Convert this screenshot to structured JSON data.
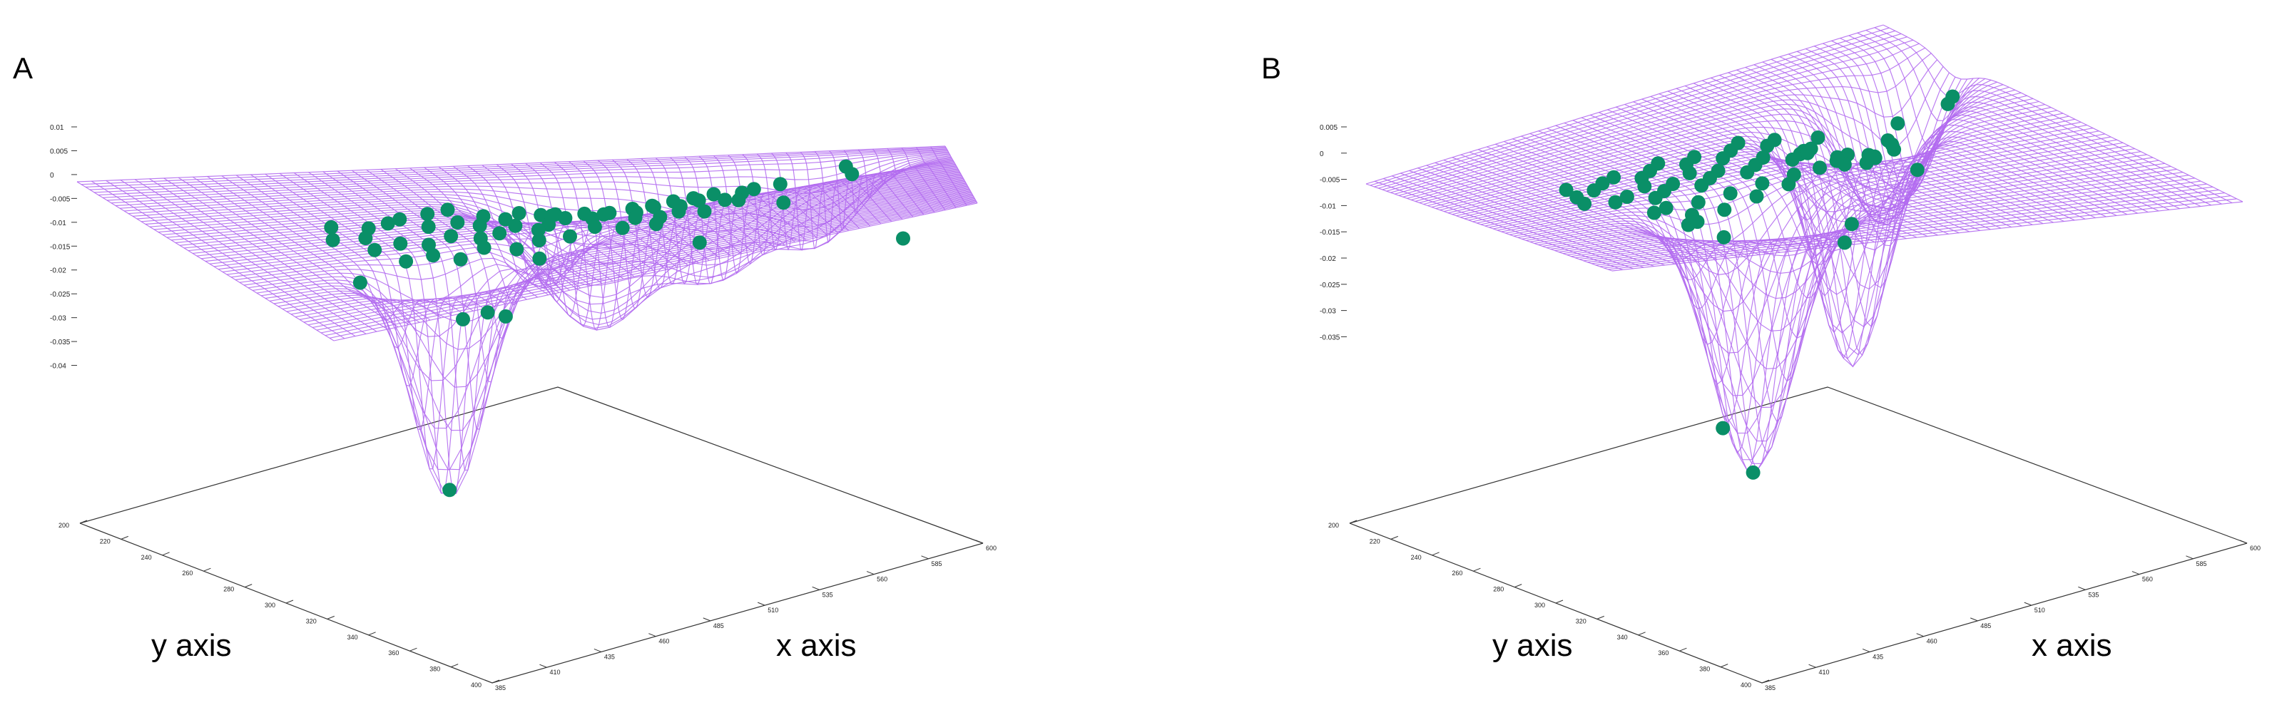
{
  "figure": {
    "colors": {
      "mesh": "#b36bf0",
      "points": "#0a8f67",
      "axes": "#333333",
      "text": "#000000"
    }
  },
  "chart_data": [
    {
      "type": "surface3d",
      "panel_label": "A",
      "xlabel": "x axis",
      "ylabel": "y axis",
      "zlim": [
        -0.045,
        0.01
      ],
      "z_ticks": [
        0.01,
        0.005,
        0,
        -0.005,
        -0.01,
        -0.015,
        -0.02,
        -0.025,
        -0.03,
        -0.035,
        -0.04
      ],
      "z_tick_labels": [
        "0.01",
        "0.005",
        "0",
        "-0.005",
        "-0.01",
        "-0.015",
        "-0.02",
        "-0.025",
        "-0.03",
        "-0.035",
        "-0.04"
      ],
      "x_ticks": [
        385,
        410,
        435,
        460,
        485,
        510,
        535,
        560,
        585,
        600
      ],
      "y_ticks": [
        200,
        220,
        240,
        260,
        280,
        300,
        320,
        340,
        360,
        380,
        400
      ],
      "wells": [
        {
          "x": 0.26,
          "y": 0.74,
          "depth": -0.048,
          "width": 0.07
        },
        {
          "x": 0.42,
          "y": 0.64,
          "depth": -0.01,
          "width": 0.05
        },
        {
          "x": 0.55,
          "y": 0.31,
          "depth": -0.028,
          "width": 0.1
        },
        {
          "x": 0.71,
          "y": 0.25,
          "depth": -0.02,
          "width": 0.09
        },
        {
          "x": 0.84,
          "y": 0.2,
          "depth": -0.015,
          "width": 0.07
        }
      ],
      "points": [
        [
          0.2,
          0.38,
          0
        ],
        [
          0.24,
          0.41,
          0
        ],
        [
          0.27,
          0.39,
          0
        ],
        [
          0.29,
          0.37,
          0
        ],
        [
          0.33,
          0.35,
          0
        ],
        [
          0.36,
          0.33,
          0
        ],
        [
          0.31,
          0.44,
          0
        ],
        [
          0.35,
          0.43,
          0
        ],
        [
          0.39,
          0.4,
          0
        ],
        [
          0.41,
          0.44,
          0
        ],
        [
          0.44,
          0.38,
          0
        ],
        [
          0.46,
          0.42,
          0
        ],
        [
          0.49,
          0.36,
          0
        ],
        [
          0.52,
          0.4,
          0
        ],
        [
          0.55,
          0.37,
          0
        ],
        [
          0.58,
          0.41,
          0
        ],
        [
          0.61,
          0.38,
          0
        ],
        [
          0.64,
          0.36,
          0
        ],
        [
          0.66,
          0.4,
          0
        ],
        [
          0.69,
          0.37,
          0
        ],
        [
          0.72,
          0.42,
          0
        ],
        [
          0.74,
          0.38,
          0
        ],
        [
          0.21,
          0.55,
          0
        ],
        [
          0.25,
          0.53,
          0
        ],
        [
          0.28,
          0.56,
          0
        ],
        [
          0.32,
          0.52,
          0
        ],
        [
          0.35,
          0.56,
          0
        ],
        [
          0.38,
          0.54,
          0
        ],
        [
          0.41,
          0.5,
          0
        ],
        [
          0.45,
          0.52,
          0
        ],
        [
          0.48,
          0.48,
          0
        ],
        [
          0.51,
          0.51,
          0
        ],
        [
          0.54,
          0.47,
          0
        ],
        [
          0.57,
          0.5,
          0
        ],
        [
          0.6,
          0.46,
          0
        ],
        [
          0.63,
          0.49,
          0
        ],
        [
          0.66,
          0.45,
          0
        ],
        [
          0.69,
          0.48,
          0
        ],
        [
          0.23,
          0.63,
          0
        ],
        [
          0.27,
          0.62,
          0
        ],
        [
          0.3,
          0.65,
          0
        ],
        [
          0.34,
          0.62,
          0
        ],
        [
          0.38,
          0.64,
          0
        ],
        [
          0.42,
          0.6,
          0
        ],
        [
          0.46,
          0.61,
          0
        ],
        [
          0.5,
          0.58,
          0
        ],
        [
          0.53,
          0.62,
          0
        ],
        [
          0.18,
          0.46,
          0
        ],
        [
          0.22,
          0.47,
          0
        ],
        [
          0.37,
          0.47,
          0
        ],
        [
          0.43,
          0.55,
          0
        ],
        [
          0.47,
          0.44,
          0
        ],
        [
          0.56,
          0.55,
          0
        ],
        [
          0.59,
          0.57,
          0
        ],
        [
          0.62,
          0.54,
          0
        ],
        [
          0.65,
          0.57,
          0
        ],
        [
          0.78,
          0.32,
          0
        ],
        [
          0.17,
          0.62,
          -0.004
        ],
        [
          0.29,
          0.7,
          -0.012
        ],
        [
          0.33,
          0.68,
          -0.012
        ],
        [
          0.26,
          0.74,
          -0.046
        ],
        [
          0.36,
          0.66,
          -0.014
        ],
        [
          0.63,
          0.28,
          -0.008
        ],
        [
          0.68,
          0.31,
          -0.012
        ],
        [
          0.86,
          0.35,
          0.002
        ],
        [
          0.87,
          0.32,
          0
        ],
        [
          0.73,
          0.3,
          -0.004
        ],
        [
          0.79,
          0.26,
          -0.006
        ],
        [
          0.94,
          0.22,
          -0.016
        ],
        [
          0.4,
          0.69,
          -0.002
        ]
      ]
    },
    {
      "type": "surface3d",
      "panel_label": "B",
      "xlabel": "x axis",
      "ylabel": "y axis",
      "zlim": [
        -0.045,
        0.005
      ],
      "z_ticks": [
        0.005,
        0,
        -0.005,
        -0.01,
        -0.015,
        -0.02,
        -0.025,
        -0.03,
        -0.035
      ],
      "z_tick_labels": [
        "0.005",
        "0",
        "-0.005",
        "-0.01",
        "-0.015",
        "-0.02",
        "-0.025",
        "-0.03",
        "-0.035"
      ],
      "x_ticks": [
        385,
        410,
        435,
        460,
        485,
        510,
        535,
        560,
        585,
        600
      ],
      "y_ticks": [
        200,
        220,
        240,
        260,
        280,
        300,
        320,
        340,
        360,
        380,
        400
      ],
      "wells": [
        {
          "x": 0.36,
          "y": 0.7,
          "depth": -0.05,
          "width": 0.09
        },
        {
          "x": 0.7,
          "y": 0.38,
          "depth": -0.045,
          "width": 0.08
        },
        {
          "x": 0.83,
          "y": 0.26,
          "depth": -0.024,
          "width": 0.08
        },
        {
          "x": 0.92,
          "y": 0.2,
          "depth": -0.018,
          "width": 0.06
        }
      ],
      "points": [
        [
          0.2,
          0.36,
          0
        ],
        [
          0.23,
          0.4,
          0
        ],
        [
          0.26,
          0.37,
          0
        ],
        [
          0.29,
          0.35,
          0
        ],
        [
          0.32,
          0.39,
          0
        ],
        [
          0.35,
          0.36,
          0
        ],
        [
          0.38,
          0.33,
          0
        ],
        [
          0.41,
          0.37,
          0
        ],
        [
          0.44,
          0.34,
          0
        ],
        [
          0.47,
          0.38,
          0
        ],
        [
          0.5,
          0.35,
          0
        ],
        [
          0.53,
          0.32,
          0
        ],
        [
          0.56,
          0.36,
          0
        ],
        [
          0.59,
          0.33,
          0
        ],
        [
          0.62,
          0.37,
          0
        ],
        [
          0.65,
          0.34,
          0
        ],
        [
          0.68,
          0.31,
          0
        ],
        [
          0.71,
          0.35,
          0
        ],
        [
          0.22,
          0.5,
          0
        ],
        [
          0.25,
          0.48,
          0
        ],
        [
          0.28,
          0.52,
          0
        ],
        [
          0.31,
          0.49,
          0
        ],
        [
          0.34,
          0.46,
          0
        ],
        [
          0.37,
          0.5,
          0
        ],
        [
          0.4,
          0.47,
          0
        ],
        [
          0.43,
          0.44,
          0
        ],
        [
          0.46,
          0.48,
          0
        ],
        [
          0.49,
          0.45,
          0
        ],
        [
          0.52,
          0.42,
          0
        ],
        [
          0.55,
          0.46,
          0
        ],
        [
          0.58,
          0.43,
          0
        ],
        [
          0.61,
          0.4,
          0
        ],
        [
          0.64,
          0.44,
          0
        ],
        [
          0.67,
          0.41,
          0
        ],
        [
          0.7,
          0.45,
          0
        ],
        [
          0.73,
          0.4,
          0
        ],
        [
          0.24,
          0.6,
          0
        ],
        [
          0.27,
          0.58,
          0
        ],
        [
          0.3,
          0.61,
          0
        ],
        [
          0.33,
          0.57,
          0
        ],
        [
          0.36,
          0.6,
          0
        ],
        [
          0.39,
          0.56,
          0
        ],
        [
          0.42,
          0.59,
          0
        ],
        [
          0.45,
          0.55,
          0
        ],
        [
          0.48,
          0.58,
          0
        ],
        [
          0.51,
          0.54,
          0
        ],
        [
          0.18,
          0.47,
          0
        ],
        [
          0.19,
          0.42,
          0
        ],
        [
          0.3,
          0.44,
          0
        ],
        [
          0.39,
          0.42,
          0
        ],
        [
          0.56,
          0.53,
          0
        ],
        [
          0.6,
          0.51,
          0
        ],
        [
          0.63,
          0.55,
          0
        ],
        [
          0.74,
          0.44,
          0
        ],
        [
          0.8,
          0.35,
          0
        ],
        [
          0.88,
          0.38,
          0.002
        ],
        [
          0.89,
          0.35,
          0
        ],
        [
          0.27,
          0.66,
          -0.002
        ],
        [
          0.29,
          0.65,
          -0.002
        ],
        [
          0.33,
          0.66,
          0
        ],
        [
          0.3,
          0.72,
          -0.04
        ],
        [
          0.36,
          0.7,
          -0.05
        ],
        [
          0.7,
          0.38,
          -0.018
        ],
        [
          0.67,
          0.41,
          -0.02
        ],
        [
          0.79,
          0.28,
          -0.01
        ],
        [
          0.85,
          0.24,
          -0.01
        ],
        [
          0.93,
          0.2,
          -0.019
        ],
        [
          0.76,
          0.4,
          0
        ]
      ]
    }
  ]
}
